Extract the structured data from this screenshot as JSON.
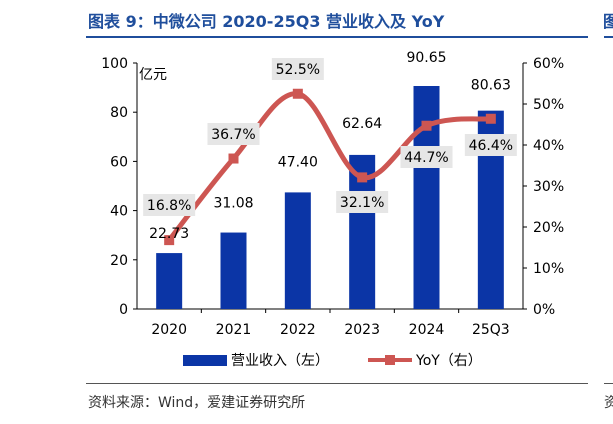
{
  "figure": {
    "title": "图表 9：中微公司 2020-25Q3 营业收入及 YoY",
    "source": "资料来源：Wind，爱建证券研究所",
    "edge_glyph_top": "图",
    "edge_glyph_bottom": "资"
  },
  "chart_data": {
    "type": "bar",
    "categories": [
      "2020",
      "2021",
      "2022",
      "2023",
      "2024",
      "25Q3"
    ],
    "series": [
      {
        "name": "营业收入（左）",
        "type": "bar",
        "axis": "left",
        "values": [
          22.73,
          31.08,
          47.4,
          62.64,
          90.65,
          80.63
        ],
        "labels": [
          "22.73",
          "31.08",
          "47.40",
          "62.64",
          "90.65",
          "80.63"
        ]
      },
      {
        "name": "YoY（右）",
        "type": "line",
        "axis": "right",
        "values": [
          16.8,
          36.7,
          52.5,
          32.1,
          44.7,
          46.4
        ],
        "labels": [
          "16.8%",
          "36.7%",
          "52.5%",
          "32.1%",
          "44.7%",
          "46.4%"
        ]
      }
    ],
    "y_left": {
      "label": "亿元",
      "min": 0,
      "max": 100,
      "ticks": [
        0,
        20,
        40,
        60,
        80,
        100
      ],
      "tick_labels": [
        "0",
        "20",
        "40",
        "60",
        "80",
        "100"
      ]
    },
    "y_right": {
      "min": 0,
      "max": 60,
      "ticks": [
        0,
        10,
        20,
        30,
        40,
        50,
        60
      ],
      "tick_labels": [
        "0%",
        "10%",
        "20%",
        "30%",
        "40%",
        "50%",
        "60%"
      ]
    },
    "grid": false,
    "legend_position": "bottom",
    "colors": {
      "bar": "#0b35a6",
      "line": "#cd5652",
      "label_box": "#e6e6e6",
      "title": "#1f4e9c"
    }
  }
}
